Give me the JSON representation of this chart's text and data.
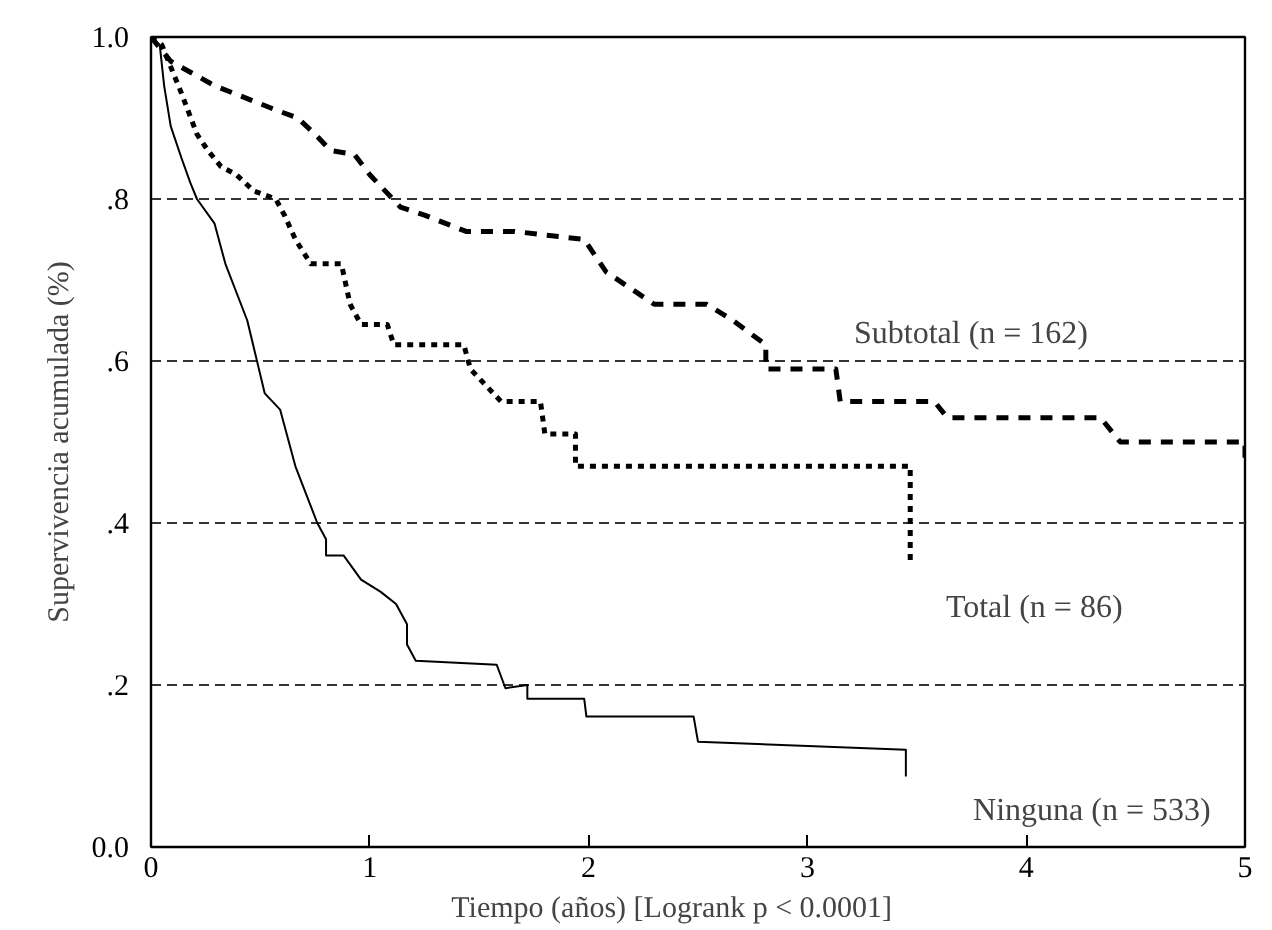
{
  "chart_data": {
    "type": "line",
    "xlabel": "Tiempo (años)        [Logrank p < 0.0001]",
    "ylabel": "Supervivencia acumulada (%)",
    "xlim": [
      0,
      5
    ],
    "ylim": [
      0,
      1
    ],
    "xticks": [
      0,
      1,
      2,
      3,
      4,
      5
    ],
    "yticks": [
      {
        "value": 0,
        "label": "0.0"
      },
      {
        "value": 0.2,
        "label": ".2"
      },
      {
        "value": 0.4,
        "label": ".4"
      },
      {
        "value": 0.6,
        "label": ".6"
      },
      {
        "value": 0.8,
        "label": ".8"
      },
      {
        "value": 1.0,
        "label": "1.0"
      }
    ],
    "grid": "y",
    "marker": "none",
    "series": [
      {
        "name": "Subtotal (n = 162)",
        "color": "#000000",
        "line_style": "dashed",
        "x": [
          0,
          0.09,
          0.29,
          0.57,
          0.67,
          0.75,
          0.82,
          0.93,
          1.0,
          1.07,
          1.14,
          1.25,
          1.44,
          1.66,
          1.98,
          2.08,
          2.3,
          2.54,
          2.66,
          2.81,
          2.81,
          3.13,
          3.15,
          3.58,
          3.64,
          4.34,
          4.43,
          5.0,
          5.0
        ],
        "values": [
          1.0,
          0.97,
          0.94,
          0.91,
          0.9,
          0.88,
          0.86,
          0.855,
          0.83,
          0.81,
          0.79,
          0.78,
          0.76,
          0.76,
          0.75,
          0.71,
          0.67,
          0.67,
          0.65,
          0.62,
          0.59,
          0.59,
          0.55,
          0.55,
          0.53,
          0.53,
          0.5,
          0.5,
          0.47
        ]
      },
      {
        "name": "Total (n = 86)",
        "color": "#000000",
        "line_style": "dotted",
        "x": [
          0,
          0.05,
          0.14,
          0.21,
          0.26,
          0.32,
          0.39,
          0.47,
          0.57,
          0.61,
          0.66,
          0.73,
          0.87,
          0.91,
          0.96,
          1.08,
          1.11,
          1.43,
          1.46,
          1.6,
          1.78,
          1.8,
          1.94,
          1.94,
          3.47,
          3.47
        ],
        "values": [
          1.0,
          0.99,
          0.93,
          0.88,
          0.86,
          0.84,
          0.83,
          0.81,
          0.8,
          0.78,
          0.75,
          0.72,
          0.72,
          0.67,
          0.645,
          0.645,
          0.62,
          0.62,
          0.59,
          0.55,
          0.55,
          0.51,
          0.51,
          0.47,
          0.47,
          0.35
        ]
      },
      {
        "name": "Ninguna (n = 533)",
        "color": "#000000",
        "line_style": "solid",
        "x": [
          0,
          0.04,
          0.06,
          0.09,
          0.14,
          0.18,
          0.21,
          0.29,
          0.34,
          0.44,
          0.52,
          0.59,
          0.66,
          0.76,
          0.8,
          0.8,
          0.88,
          0.96,
          1.05,
          1.12,
          1.17,
          1.17,
          1.21,
          1.58,
          1.62,
          1.72,
          1.72,
          1.98,
          1.99,
          2.48,
          2.5,
          3.45,
          3.45
        ],
        "values": [
          1.0,
          0.99,
          0.94,
          0.89,
          0.85,
          0.82,
          0.8,
          0.77,
          0.72,
          0.65,
          0.56,
          0.54,
          0.47,
          0.4,
          0.38,
          0.36,
          0.36,
          0.33,
          0.315,
          0.3,
          0.275,
          0.25,
          0.23,
          0.225,
          0.196,
          0.2,
          0.183,
          0.183,
          0.161,
          0.161,
          0.13,
          0.12,
          0.087
        ]
      }
    ]
  }
}
